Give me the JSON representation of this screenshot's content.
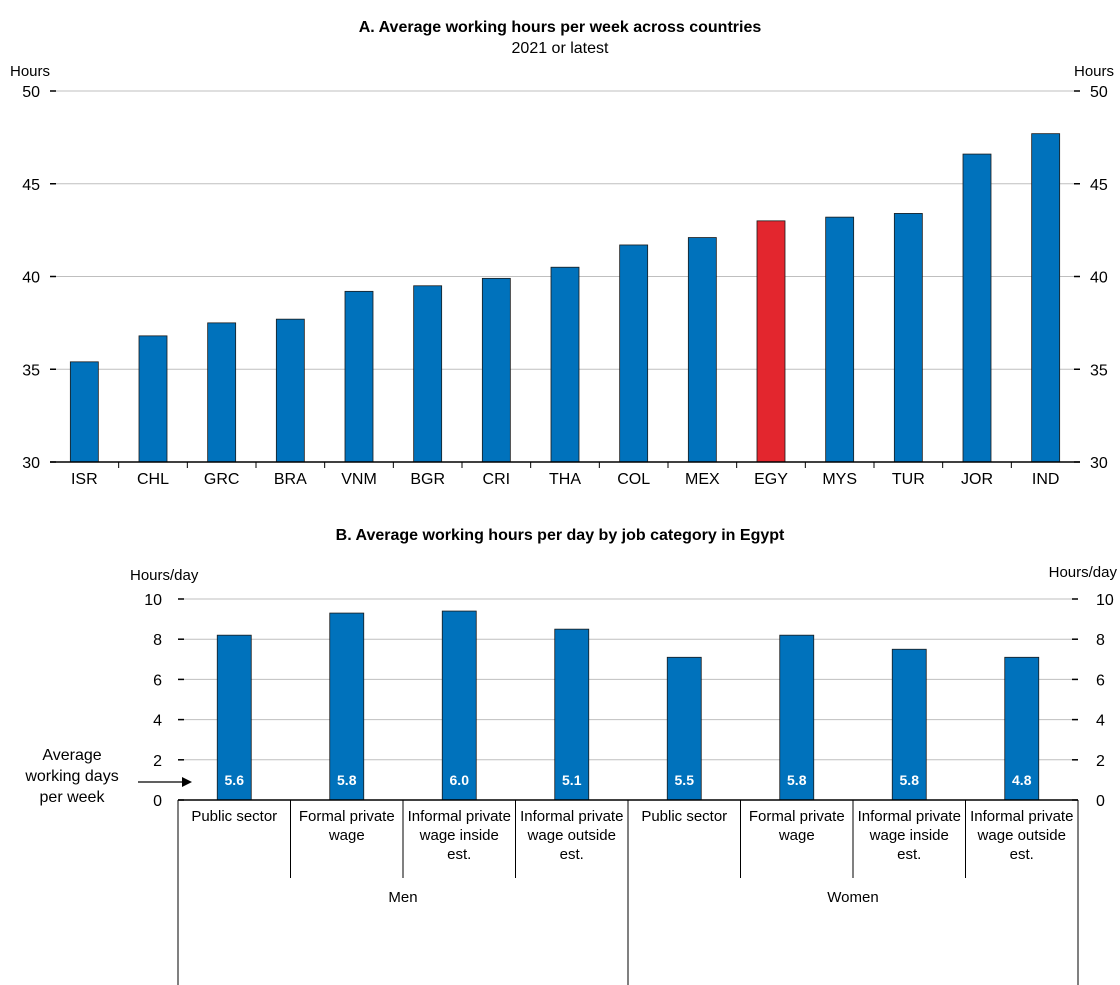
{
  "colors": {
    "bar": "#0072BC",
    "highlight": "#E3262E",
    "grid": "#bfbfbf",
    "axis": "#000000",
    "label": "#ffffff"
  },
  "chart_data": [
    {
      "type": "bar",
      "title": "A. Average working hours per week across countries",
      "subtitle": "2021 or latest",
      "ylabel_left": "Hours",
      "ylabel_right": "Hours",
      "ylim": [
        30,
        50
      ],
      "yticks": [
        30,
        35,
        40,
        45,
        50
      ],
      "grid": true,
      "categories": [
        "ISR",
        "CHL",
        "GRC",
        "BRA",
        "VNM",
        "BGR",
        "CRI",
        "THA",
        "COL",
        "MEX",
        "EGY",
        "MYS",
        "TUR",
        "JOR",
        "IND"
      ],
      "values": [
        35.4,
        36.8,
        37.5,
        37.7,
        39.2,
        39.5,
        39.9,
        40.5,
        41.7,
        42.1,
        43.0,
        43.2,
        43.4,
        46.6,
        47.7
      ],
      "highlight": "EGY"
    },
    {
      "type": "bar",
      "title": "B. Average working hours per day by job category in Egypt",
      "ylabel_left": "Hours/day",
      "ylabel_right": "Hours/day",
      "ylim": [
        0,
        10
      ],
      "yticks": [
        0,
        2,
        4,
        6,
        8,
        10
      ],
      "grid": true,
      "categories": [
        [
          "Public sector"
        ],
        [
          "Formal private",
          "wage"
        ],
        [
          "Informal private",
          "wage inside",
          "est."
        ],
        [
          "Informal private",
          "wage outside",
          "est."
        ],
        [
          "Public sector"
        ],
        [
          "Formal private",
          "wage"
        ],
        [
          "Informal private",
          "wage inside",
          "est."
        ],
        [
          "Informal private",
          "wage outside",
          "est."
        ]
      ],
      "groups": [
        {
          "name": "Men",
          "count": 4
        },
        {
          "name": "Women",
          "count": 4
        }
      ],
      "values": [
        8.2,
        9.3,
        9.4,
        8.5,
        7.1,
        8.2,
        7.5,
        7.1
      ],
      "data_labels": [
        "5.6",
        "5.8",
        "6.0",
        "5.1",
        "5.5",
        "5.8",
        "5.8",
        "4.8"
      ],
      "annotation": [
        "Average",
        "working days",
        "per week"
      ]
    }
  ]
}
